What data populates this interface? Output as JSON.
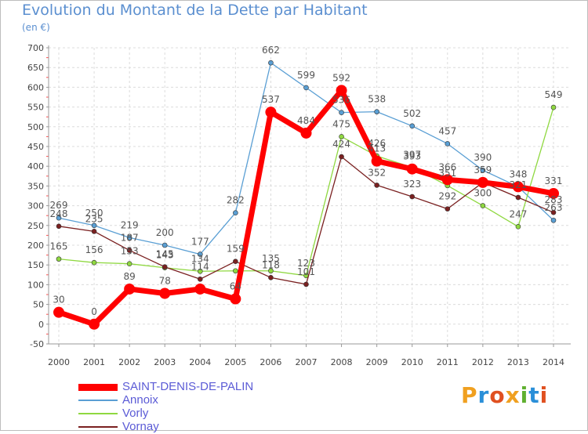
{
  "title": "Evolution du Montant de la Dette par Habitant",
  "subtitle": "(en €)",
  "brand": {
    "text": "Proxiti",
    "colors": [
      "#f0a020",
      "#2a8fd8",
      "#e05020",
      "#f0a020",
      "#60b030",
      "#2a8fd8",
      "#e05020"
    ]
  },
  "chart_data": {
    "type": "line",
    "x": [
      2000,
      2001,
      2002,
      2003,
      2004,
      2005,
      2006,
      2007,
      2008,
      2009,
      2010,
      2011,
      2012,
      2013,
      2014
    ],
    "ylim": [
      -50,
      700
    ],
    "yticks": [
      -50,
      0,
      50,
      100,
      150,
      200,
      250,
      300,
      350,
      400,
      450,
      500,
      550,
      600,
      650,
      700
    ],
    "grid": true,
    "legend_position": "bottom-left",
    "series": [
      {
        "name": "Annoix",
        "color": "#5a9fd4",
        "width": 1.3,
        "values": [
          269,
          250,
          219,
          200,
          177,
          282,
          662,
          599,
          536,
          538,
          502,
          457,
          390,
          348,
          263
        ],
        "labels": [
          "269",
          "250",
          "219",
          "200",
          "177",
          "282",
          "662",
          "599",
          "536",
          "538",
          "502",
          "457",
          "390",
          "348",
          "263"
        ]
      },
      {
        "name": "Vorly",
        "color": "#8fd840",
        "width": 1.3,
        "values": [
          165,
          156,
          153,
          143,
          134,
          135,
          135,
          123,
          475,
          426,
          397,
          351,
          300,
          247,
          549
        ],
        "labels": [
          "165",
          "156",
          "153",
          "143",
          "134",
          "",
          "135",
          "123",
          "475",
          "426",
          "397",
          "351",
          "300",
          "247",
          "549"
        ]
      },
      {
        "name": "Vornay",
        "color": "#7a2020",
        "width": 1.3,
        "values": [
          248,
          235,
          187,
          145,
          114,
          159,
          118,
          101,
          424,
          352,
          323,
          292,
          359,
          321,
          283
        ],
        "labels": [
          "248",
          "235",
          "187",
          "145",
          "114",
          "159",
          "118",
          "101",
          "424",
          "352",
          "323",
          "292",
          "359",
          "321",
          "283"
        ]
      },
      {
        "name": "SAINT-DENIS-DE-PALIN",
        "color": "#ff0000",
        "width": 7,
        "values": [
          30,
          0,
          89,
          78,
          89,
          64,
          537,
          484,
          592,
          413,
          393,
          366,
          359,
          348,
          331
        ],
        "labels": [
          "30",
          "0",
          "89",
          "78",
          "",
          "64",
          "537",
          "484",
          "592",
          "413",
          "393",
          "366",
          "",
          "",
          "331"
        ]
      }
    ],
    "legend_order": [
      "SAINT-DENIS-DE-PALIN",
      "Annoix",
      "Vorly",
      "Vornay"
    ]
  }
}
